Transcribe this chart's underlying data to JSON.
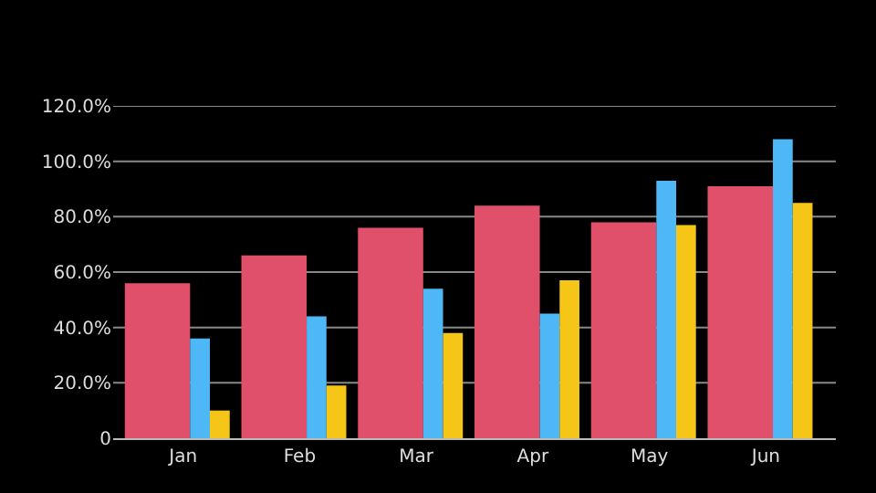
{
  "chart_data": {
    "type": "bar",
    "categories": [
      "Jan",
      "Feb",
      "Mar",
      "Apr",
      "May",
      "Jun"
    ],
    "series": [
      {
        "color": "#e0506a",
        "values": [
          56,
          66,
          76,
          84,
          78,
          91
        ]
      },
      {
        "color": "#4db8f5",
        "values": [
          36,
          44,
          54,
          45,
          93,
          108
        ]
      },
      {
        "color": "#f5c518",
        "values": [
          10,
          19,
          38,
          57,
          77,
          85
        ]
      }
    ],
    "ylim": [
      0,
      120
    ],
    "yticks": [
      {
        "value": 0,
        "label": "0"
      },
      {
        "value": 20,
        "label": "20.0%"
      },
      {
        "value": 40,
        "label": "40.0%"
      },
      {
        "value": 60,
        "label": "60.0%"
      },
      {
        "value": 80,
        "label": "80.0%"
      },
      {
        "value": 100,
        "label": "100.0%"
      },
      {
        "value": 120,
        "label": "120.0%"
      }
    ],
    "grid": "y"
  }
}
